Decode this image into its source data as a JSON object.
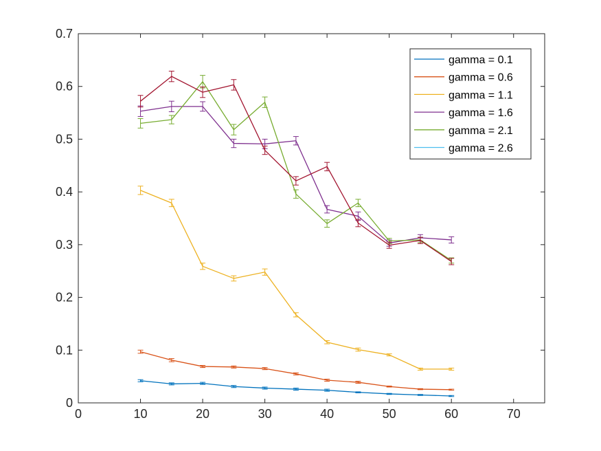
{
  "chart_data": {
    "type": "line",
    "title": "",
    "xlabel": "",
    "ylabel": "",
    "xlim": [
      0,
      75
    ],
    "ylim": [
      0,
      0.7
    ],
    "xticks": [
      0,
      10,
      20,
      30,
      40,
      50,
      60,
      70
    ],
    "yticks": [
      0,
      0.1,
      0.2,
      0.3,
      0.4,
      0.5,
      0.6,
      0.7
    ],
    "xtick_labels": [
      "0",
      "10",
      "20",
      "30",
      "40",
      "50",
      "60",
      "70"
    ],
    "ytick_labels": [
      "0",
      "0.1",
      "0.2",
      "0.3",
      "0.4",
      "0.5",
      "0.6",
      "0.7"
    ],
    "grid": false,
    "legend_position": "top-right",
    "error_bars": true,
    "x": [
      10,
      15,
      20,
      25,
      30,
      35,
      40,
      45,
      50,
      55,
      60
    ],
    "series": [
      {
        "name": "gamma = 0.1",
        "color": "#0072BD",
        "values": [
          0.042,
          0.036,
          0.037,
          0.031,
          0.028,
          0.026,
          0.024,
          0.02,
          0.017,
          0.015,
          0.013
        ],
        "errors": [
          0.002,
          0.002,
          0.002,
          0.002,
          0.002,
          0.002,
          0.002,
          0.001,
          0.001,
          0.001,
          0.001
        ]
      },
      {
        "name": "gamma = 0.6",
        "color": "#D95319",
        "values": [
          0.097,
          0.081,
          0.069,
          0.068,
          0.065,
          0.055,
          0.043,
          0.039,
          0.031,
          0.026,
          0.025
        ],
        "errors": [
          0.003,
          0.003,
          0.002,
          0.002,
          0.002,
          0.002,
          0.002,
          0.002,
          0.001,
          0.001,
          0.001
        ]
      },
      {
        "name": "gamma = 1.1",
        "color": "#EDB120",
        "values": [
          0.403,
          0.379,
          0.259,
          0.236,
          0.248,
          0.167,
          0.115,
          0.101,
          0.091,
          0.064,
          0.064
        ],
        "errors": [
          0.008,
          0.007,
          0.006,
          0.005,
          0.006,
          0.004,
          0.003,
          0.003,
          0.002,
          0.002,
          0.002
        ]
      },
      {
        "name": "gamma = 1.6",
        "color": "#7E2F8E",
        "values": [
          0.553,
          0.562,
          0.562,
          0.492,
          0.491,
          0.497,
          0.367,
          0.354,
          0.303,
          0.313,
          0.309
        ],
        "errors": [
          0.01,
          0.01,
          0.009,
          0.008,
          0.009,
          0.008,
          0.007,
          0.008,
          0.006,
          0.006,
          0.006
        ]
      },
      {
        "name": "gamma = 2.1",
        "color": "#77AC30",
        "values": [
          0.53,
          0.537,
          0.609,
          0.518,
          0.57,
          0.396,
          0.34,
          0.379,
          0.307,
          0.309,
          0.27
        ],
        "errors": [
          0.009,
          0.008,
          0.012,
          0.01,
          0.01,
          0.008,
          0.007,
          0.007,
          0.005,
          0.005,
          0.005
        ]
      },
      {
        "name": "gamma = 2.6",
        "color": "#4DBEEE",
        "values": [
          null,
          null,
          null,
          null,
          null,
          null,
          null,
          null,
          null,
          null,
          null
        ],
        "errors": [
          null,
          null,
          null,
          null,
          null,
          null,
          null,
          null,
          null,
          null,
          null
        ]
      },
      {
        "color": "#A2142F",
        "values": [
          0.572,
          0.619,
          0.589,
          0.603,
          0.479,
          0.421,
          0.448,
          0.341,
          0.299,
          0.308,
          0.268
        ],
        "errors": [
          0.011,
          0.01,
          0.01,
          0.01,
          0.008,
          0.008,
          0.008,
          0.007,
          0.006,
          0.006,
          0.006
        ]
      }
    ]
  }
}
